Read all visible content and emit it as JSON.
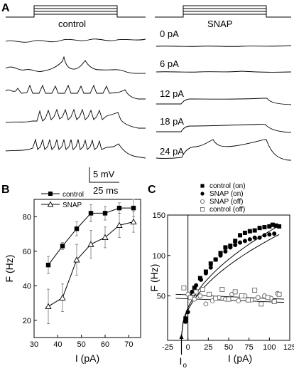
{
  "figure": {
    "panel_labels": [
      "A",
      "B",
      "C"
    ],
    "panel_a": {
      "left_title": "control",
      "right_title": "SNAP",
      "currents": [
        "0 pA",
        "6 pA",
        "12 pA",
        "18 pA",
        "24 pA"
      ],
      "scale_v": "5 mV",
      "scale_t": "25 ms"
    }
  },
  "chart_data": [
    {
      "type": "line",
      "panel": "B",
      "xlabel": "I (pA)",
      "ylabel": "F (Hz)",
      "xlim": [
        30,
        75
      ],
      "ylim": [
        10,
        90
      ],
      "xticks": [
        30,
        40,
        50,
        60,
        70
      ],
      "yticks": [
        20,
        40,
        60,
        80
      ],
      "legend_position": "top-left",
      "series": [
        {
          "name": "control",
          "marker": "filled-square",
          "x": [
            36,
            42,
            48,
            54,
            60,
            66,
            72
          ],
          "y": [
            52,
            63,
            73,
            82,
            82,
            85,
            85
          ],
          "err": [
            5,
            2,
            4,
            5,
            4,
            3,
            5
          ]
        },
        {
          "name": "SNAP",
          "marker": "open-triangle",
          "x": [
            36,
            42,
            48,
            54,
            60,
            66,
            72
          ],
          "y": [
            28,
            33,
            55,
            64,
            68,
            75,
            77
          ],
          "err": [
            10,
            8,
            9,
            8,
            6,
            7,
            6
          ]
        }
      ]
    },
    {
      "type": "scatter",
      "panel": "C",
      "xlabel": "I (pA)",
      "ylabel": "F (Hz)",
      "xlim": [
        -25,
        125
      ],
      "ylim": [
        -5,
        150
      ],
      "xticks": [
        -25,
        0,
        25,
        50,
        75,
        100,
        125
      ],
      "yticks": [
        50,
        100,
        150
      ],
      "legend_position": "top-right",
      "annotation": "I",
      "annotation_subscript": "o",
      "series": [
        {
          "name": "control (on)",
          "marker": "filled-square",
          "x": [
            -3,
            2,
            8,
            15,
            22,
            28,
            34,
            40,
            46,
            52,
            58,
            64,
            70,
            76,
            82,
            88,
            94,
            100,
            104,
            108,
            112
          ],
          "y": [
            22,
            50,
            60,
            72,
            80,
            90,
            95,
            103,
            110,
            112,
            118,
            125,
            128,
            130,
            131,
            134,
            135,
            136,
            138,
            137,
            136
          ]
        },
        {
          "name": "SNAP (on)",
          "marker": "filled-circle",
          "x": [
            -3,
            0,
            5,
            10,
            16,
            22,
            28,
            34,
            40,
            46,
            52,
            58,
            64,
            70,
            76,
            82,
            88,
            94,
            100,
            106
          ],
          "y": [
            18,
            30,
            55,
            63,
            70,
            78,
            85,
            95,
            100,
            105,
            110,
            113,
            116,
            118,
            120,
            122,
            122,
            125,
            126,
            127
          ]
        },
        {
          "name": "SNAP (off)",
          "marker": "open-circle",
          "x": [
            0,
            8,
            15,
            22,
            30,
            38,
            46,
            54,
            62,
            70,
            78,
            86,
            94,
            102,
            110
          ],
          "y": [
            52,
            46,
            50,
            40,
            44,
            48,
            46,
            52,
            44,
            50,
            45,
            48,
            50,
            47,
            53
          ]
        },
        {
          "name": "control (off)",
          "marker": "open-square",
          "x": [
            -5,
            3,
            10,
            18,
            26,
            34,
            42,
            50,
            58,
            66,
            74,
            82,
            90,
            98,
            106,
            112
          ],
          "y": [
            60,
            48,
            55,
            58,
            52,
            47,
            58,
            46,
            55,
            50,
            45,
            57,
            40,
            48,
            43,
            52
          ]
        }
      ]
    }
  ]
}
